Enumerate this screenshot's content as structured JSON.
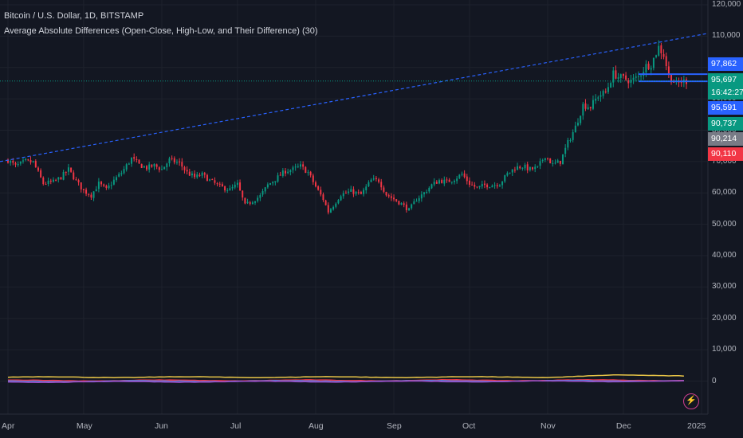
{
  "legend": {
    "symbol_line": "Bitcoin / U.S. Dollar, 1D, BITSTAMP",
    "indicator_line": "Average Absolute Differences (Open-Close, High-Low, and Their Difference) (30)"
  },
  "price_badges": [
    {
      "text": "97,862",
      "color": "#2962ff",
      "value": 97862
    },
    {
      "text": "95,697",
      "color": "#089981",
      "value": 95697
    },
    {
      "text": "16:42:27",
      "color": "#089981",
      "value": null
    },
    {
      "text": "95,591",
      "color": "#2962ff",
      "value": 95591
    },
    {
      "text": "90,737",
      "color": "#089981",
      "value": 90737
    },
    {
      "text": "90,214",
      "color": "#787b86",
      "value": 90214
    },
    {
      "text": "90,110",
      "color": "#f23645",
      "value": 90110
    }
  ],
  "colors": {
    "background": "#131722",
    "up": "#089981",
    "down": "#f23645",
    "trendline": "#2962ff",
    "level": "#2962ff",
    "osc_yellow": "#e8c547",
    "osc_red": "#f23645",
    "osc_blue": "#5b7bd6",
    "osc_purple": "#9c4fc9"
  },
  "chart_data": {
    "type": "candlestick",
    "y_axis": {
      "min": 0,
      "max": 120000,
      "ticks": [
        0,
        10000,
        20000,
        30000,
        40000,
        50000,
        60000,
        70000,
        80000,
        90000,
        100000,
        110000,
        120000
      ],
      "tick_labels": [
        "0",
        "10,000",
        "20,000",
        "30,000",
        "40,000",
        "50,000",
        "60,000",
        "70,000",
        "80,000",
        "90,000",
        "100,000",
        "110,000",
        "120,000"
      ]
    },
    "x_axis": {
      "tick_labels": [
        "Apr",
        "May",
        "Jun",
        "Jul",
        "Aug",
        "Sep",
        "Oct",
        "Nov",
        "Dec",
        "2025"
      ],
      "tick_days": [
        0,
        30,
        61,
        91,
        122,
        153,
        183,
        214,
        244,
        275
      ]
    },
    "close_path": [
      [
        0,
        70500
      ],
      [
        3,
        68500
      ],
      [
        7,
        70000
      ],
      [
        10,
        69800
      ],
      [
        14,
        63000
      ],
      [
        18,
        63500
      ],
      [
        21,
        65000
      ],
      [
        24,
        67500
      ],
      [
        27,
        63800
      ],
      [
        30,
        60700
      ],
      [
        33,
        59200
      ],
      [
        36,
        63000
      ],
      [
        39,
        61000
      ],
      [
        42,
        64000
      ],
      [
        45,
        66400
      ],
      [
        49,
        71000
      ],
      [
        52,
        69000
      ],
      [
        55,
        68000
      ],
      [
        58,
        68700
      ],
      [
        61,
        67500
      ],
      [
        64,
        70500
      ],
      [
        68,
        69500
      ],
      [
        71,
        66500
      ],
      [
        74,
        65000
      ],
      [
        77,
        65800
      ],
      [
        80,
        64000
      ],
      [
        84,
        62000
      ],
      [
        88,
        61000
      ],
      [
        91,
        62700
      ],
      [
        94,
        56000
      ],
      [
        97,
        57500
      ],
      [
        100,
        59000
      ],
      [
        103,
        62500
      ],
      [
        107,
        65000
      ],
      [
        110,
        67000
      ],
      [
        113,
        67500
      ],
      [
        116,
        68500
      ],
      [
        119,
        66500
      ],
      [
        122,
        62000
      ],
      [
        125,
        58000
      ],
      [
        127,
        54000
      ],
      [
        129,
        56000
      ],
      [
        132,
        59500
      ],
      [
        136,
        60500
      ],
      [
        140,
        59500
      ],
      [
        144,
        64000
      ],
      [
        147,
        64000
      ],
      [
        150,
        59500
      ],
      [
        153,
        58000
      ],
      [
        156,
        56500
      ],
      [
        159,
        54500
      ],
      [
        162,
        58000
      ],
      [
        165,
        60000
      ],
      [
        168,
        62500
      ],
      [
        171,
        64000
      ],
      [
        174,
        63500
      ],
      [
        177,
        64500
      ],
      [
        180,
        66000
      ],
      [
        183,
        63000
      ],
      [
        186,
        61500
      ],
      [
        189,
        62500
      ],
      [
        192,
        62500
      ],
      [
        195,
        63000
      ],
      [
        198,
        66000
      ],
      [
        201,
        68000
      ],
      [
        204,
        68500
      ],
      [
        207,
        67500
      ],
      [
        210,
        68000
      ],
      [
        213,
        72000
      ],
      [
        216,
        69000
      ],
      [
        219,
        70000
      ],
      [
        222,
        76000
      ],
      [
        225,
        81000
      ],
      [
        228,
        88000
      ],
      [
        231,
        87500
      ],
      [
        234,
        91000
      ],
      [
        237,
        92000
      ],
      [
        240,
        98000
      ],
      [
        242,
        97000
      ],
      [
        244,
        96500
      ],
      [
        247,
        95700
      ],
      [
        250,
        97000
      ],
      [
        253,
        100500
      ],
      [
        255,
        101000
      ],
      [
        258,
        106500
      ],
      [
        260,
        104000
      ],
      [
        262,
        97500
      ],
      [
        265,
        94500
      ],
      [
        267,
        95500
      ],
      [
        269,
        95700
      ]
    ],
    "trendline": {
      "points": [
        [
          0,
          70000
        ],
        [
          275,
          110500
        ]
      ],
      "style": "dashed"
    },
    "horizontal_levels": [
      97862,
      95591
    ],
    "current_price_line": 95697,
    "oscillator": {
      "series": [
        {
          "name": "",
          "color": "#e8c547",
          "values_start": 4200,
          "values_end": 4300,
          "mid": [
            3600,
            4800
          ]
        },
        {
          "name": "",
          "color": "#f23645",
          "values_start": 2300,
          "values_end": 2500
        },
        {
          "name": "",
          "color": "#5b7bd6",
          "values_start": 1900,
          "values_end": 2200
        },
        {
          "name": "",
          "color": "#9c4fc9",
          "values_start": 1500,
          "values_end": 1900
        }
      ]
    }
  }
}
